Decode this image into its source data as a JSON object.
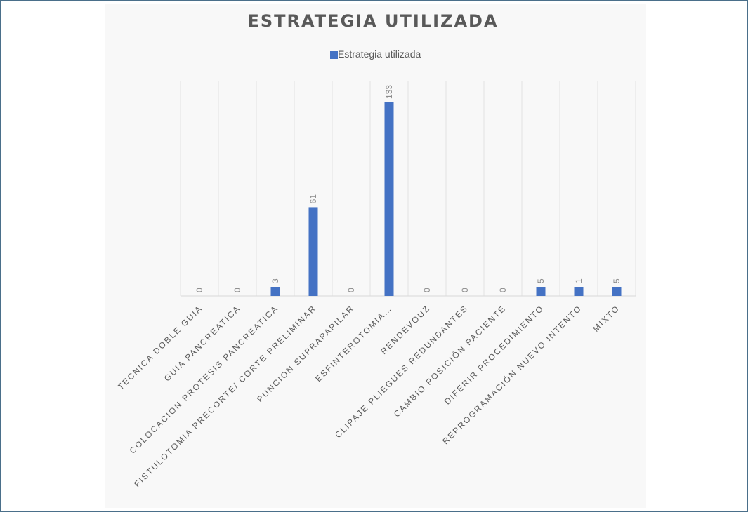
{
  "chart_data": {
    "type": "bar",
    "title": "ESTRATEGIA UTILIZADA",
    "xlabel": "",
    "ylabel": "",
    "ylim": [
      0,
      140
    ],
    "grid": "vertical",
    "legend_position": "top",
    "categories": [
      "TECNICA DOBLE GUIA",
      "GUIA PANCREATICA",
      "COLOCACION PROTESIS PANCREATICA",
      "FISTULOTOMIA PRECORTE/ CORTE PRELIMINAR",
      "PUNCION SUPRAPAPILAR",
      "ESFINTEROTOMIA…",
      "RENDEVOUZ",
      "CLIPAJE PLIEGUES REDUNDANTES",
      "CAMBIO POSICIÓN PACIENTE",
      "DIFERIR PROCEDIMIENTO",
      "REPROGRAMACIÓN NUEVO INTENTO",
      "MIXTO"
    ],
    "series": [
      {
        "name": "Estrategia utilizada",
        "values": [
          0,
          0,
          3,
          61,
          0,
          133,
          0,
          0,
          0,
          5,
          1,
          5
        ],
        "color": "#4472c4"
      }
    ]
  }
}
